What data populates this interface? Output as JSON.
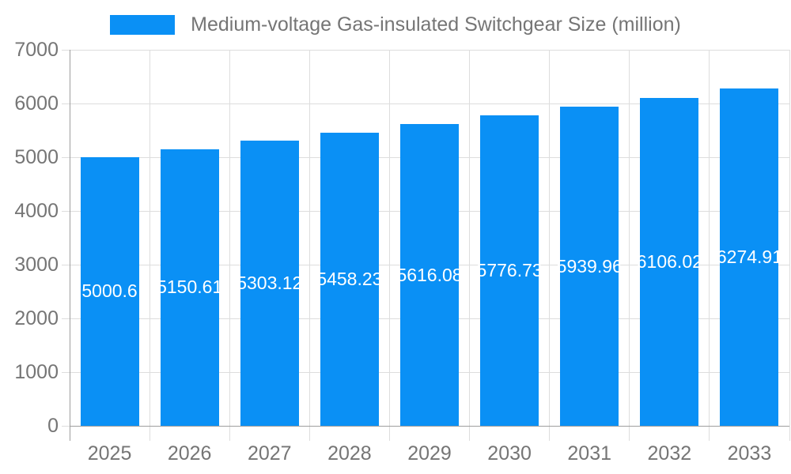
{
  "legend": {
    "label": "Medium-voltage Gas-insulated Switchgear Size (million)"
  },
  "chart_data": {
    "type": "bar",
    "title": "Medium-voltage Gas-insulated Switchgear Size (million)",
    "categories": [
      "2025",
      "2026",
      "2027",
      "2028",
      "2029",
      "2030",
      "2031",
      "2032",
      "2033"
    ],
    "values": [
      5000.6,
      5150.61,
      5303.12,
      5458.23,
      5616.08,
      5776.73,
      5939.96,
      6106.02,
      6274.91
    ],
    "value_labels": [
      "5000.6",
      "5150.61",
      "5303.12",
      "5458.23",
      "5616.08",
      "5776.73",
      "5939.96",
      "6106.02",
      "6274.91"
    ],
    "xlabel": "",
    "ylabel": "",
    "ylim": [
      0,
      7000
    ],
    "y_ticks": [
      0,
      1000,
      2000,
      3000,
      4000,
      5000,
      6000,
      7000
    ],
    "grid": true,
    "legend_position": "top",
    "value_label_position": "inside-center",
    "colors": {
      "bar": "#0a90f5",
      "axis_text": "#757575",
      "grid_line": "#dddddd",
      "axis_line": "#9e9e9e",
      "value_label": "#ffffff",
      "background": "#ffffff"
    }
  }
}
